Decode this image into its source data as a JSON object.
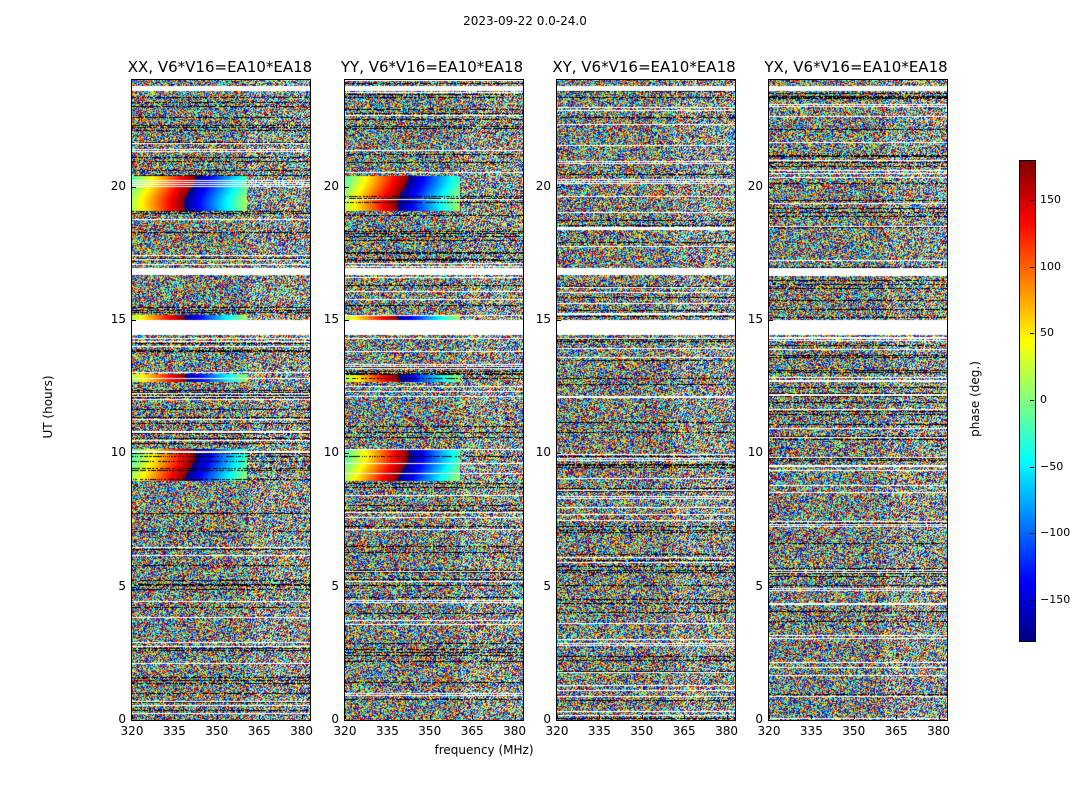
{
  "suptitle": "2023-09-22 0.0-24.0",
  "chart_data": {
    "type": "heatmap",
    "panels": [
      {
        "title": "XX, V6*V16=EA10*EA18",
        "pol": "XX"
      },
      {
        "title": "YY, V6*V16=EA10*EA18",
        "pol": "YY"
      },
      {
        "title": "XY, V6*V16=EA10*EA18",
        "pol": "XY"
      },
      {
        "title": "YX, V6*V16=EA10*EA18",
        "pol": "YX"
      }
    ],
    "xlabel": "frequency (MHz)",
    "ylabel": "UT (hours)",
    "xlim": [
      320,
      383
    ],
    "ylim": [
      0,
      24
    ],
    "xticks": [
      "320",
      "335",
      "350",
      "365",
      "380"
    ],
    "xtick_values": [
      320,
      335,
      350,
      365,
      380
    ],
    "yticks": [
      "0",
      "5",
      "10",
      "15",
      "20"
    ],
    "ytick_values": [
      0,
      5,
      10,
      15,
      20
    ],
    "colorbar": {
      "label": "phase (deg.)",
      "range": [
        -180,
        180
      ],
      "ticks": [
        "150",
        "100",
        "50",
        "0",
        "−50",
        "−100",
        "−150"
      ],
      "tick_values": [
        150,
        100,
        50,
        0,
        -50,
        -100,
        -150
      ],
      "colormap": "jet"
    },
    "flagged_ut_bands": [
      [
        14.45,
        15.0
      ],
      [
        16.7,
        16.95
      ],
      [
        23.6,
        23.8
      ]
    ],
    "coherent_phase_ut_ranges": [
      [
        19.1,
        20.4
      ],
      [
        12.7,
        13.0
      ],
      [
        9.0,
        10.2
      ],
      [
        15.0,
        15.2
      ]
    ]
  }
}
